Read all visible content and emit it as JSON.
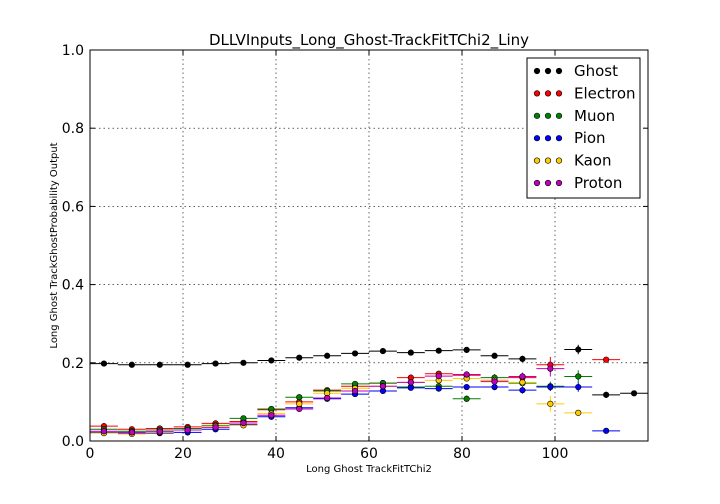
{
  "chart_data": {
    "type": "scatter",
    "title": "DLLVInputs_Long_Ghost-TrackFitTChi2_Liny",
    "xlabel": "Long Ghost TrackFitTChi2",
    "ylabel": "Long Ghost TrackGhostProbability Output",
    "xlim": [
      0,
      120
    ],
    "ylim": [
      0,
      1.0
    ],
    "x_ticks": [
      0,
      20,
      40,
      60,
      80,
      100
    ],
    "x_tick_labels": [
      "0",
      "20",
      "40",
      "60",
      "80",
      "100"
    ],
    "y_ticks": [
      0,
      0.2,
      0.4,
      0.6,
      0.8,
      1.0
    ],
    "y_tick_labels": [
      "0.0",
      "0.2",
      "0.4",
      "0.6",
      "0.8",
      "1.0"
    ],
    "grid": true,
    "legend_position": "top-right",
    "bin_half_width": 3,
    "series": [
      {
        "name": "Ghost",
        "color": "#000000",
        "x": [
          3,
          9,
          15,
          21,
          27,
          33,
          39,
          45,
          51,
          57,
          63,
          69,
          75,
          81,
          87,
          93,
          105,
          111,
          117
        ],
        "y": [
          0.198,
          0.195,
          0.195,
          0.195,
          0.198,
          0.2,
          0.206,
          0.213,
          0.218,
          0.224,
          0.23,
          0.226,
          0.231,
          0.233,
          0.218,
          0.21,
          0.234,
          0.118,
          0.122
        ],
        "yerr": [
          0.003,
          0.003,
          0.003,
          0.003,
          0.003,
          0.003,
          0.004,
          0.004,
          0.004,
          0.005,
          0.005,
          0.006,
          0.006,
          0.006,
          0.007,
          0.008,
          0.012,
          0.008,
          0.006
        ]
      },
      {
        "name": "Electron",
        "color": "#ff0000",
        "x": [
          3,
          9,
          15,
          21,
          27,
          33,
          39,
          45,
          51,
          57,
          63,
          69,
          75,
          81,
          87,
          93,
          99,
          111
        ],
        "y": [
          0.038,
          0.03,
          0.032,
          0.036,
          0.045,
          0.05,
          0.08,
          0.1,
          0.13,
          0.14,
          0.148,
          0.162,
          0.172,
          0.168,
          0.155,
          0.162,
          0.195,
          0.208
        ],
        "yerr": [
          0.003,
          0.003,
          0.003,
          0.003,
          0.003,
          0.004,
          0.004,
          0.005,
          0.005,
          0.006,
          0.006,
          0.007,
          0.007,
          0.008,
          0.009,
          0.01,
          0.02,
          0.004
        ]
      },
      {
        "name": "Muon",
        "color": "#008000",
        "x": [
          3,
          9,
          15,
          21,
          27,
          33,
          39,
          45,
          51,
          57,
          63,
          69,
          75,
          81,
          87,
          93,
          99,
          105
        ],
        "y": [
          0.03,
          0.025,
          0.028,
          0.032,
          0.04,
          0.058,
          0.082,
          0.112,
          0.128,
          0.146,
          0.148,
          0.138,
          0.14,
          0.108,
          0.162,
          0.148,
          0.14,
          0.165
        ],
        "yerr": [
          0.003,
          0.003,
          0.003,
          0.003,
          0.004,
          0.004,
          0.005,
          0.005,
          0.006,
          0.006,
          0.007,
          0.007,
          0.008,
          0.008,
          0.009,
          0.01,
          0.012,
          0.016
        ]
      },
      {
        "name": "Pion",
        "color": "#0000ff",
        "x": [
          3,
          9,
          15,
          21,
          27,
          33,
          39,
          45,
          51,
          57,
          63,
          69,
          75,
          81,
          87,
          93,
          99,
          105,
          111
        ],
        "y": [
          0.022,
          0.02,
          0.02,
          0.022,
          0.03,
          0.042,
          0.062,
          0.085,
          0.108,
          0.12,
          0.128,
          0.136,
          0.134,
          0.138,
          0.138,
          0.13,
          0.138,
          0.138,
          0.026
        ],
        "yerr": [
          0.002,
          0.002,
          0.002,
          0.002,
          0.003,
          0.003,
          0.004,
          0.004,
          0.005,
          0.005,
          0.006,
          0.006,
          0.007,
          0.007,
          0.008,
          0.009,
          0.01,
          0.012,
          0.004
        ]
      },
      {
        "name": "Kaon",
        "color": "#ffcc00",
        "x": [
          3,
          9,
          15,
          21,
          27,
          33,
          39,
          45,
          51,
          57,
          63,
          69,
          75,
          81,
          87,
          93,
          99,
          105
        ],
        "y": [
          0.02,
          0.018,
          0.022,
          0.028,
          0.038,
          0.04,
          0.07,
          0.095,
          0.122,
          0.135,
          0.14,
          0.15,
          0.155,
          0.16,
          0.155,
          0.15,
          0.095,
          0.072
        ],
        "yerr": [
          0.002,
          0.002,
          0.002,
          0.003,
          0.003,
          0.004,
          0.005,
          0.005,
          0.006,
          0.006,
          0.007,
          0.007,
          0.008,
          0.008,
          0.009,
          0.01,
          0.02,
          0.006
        ]
      },
      {
        "name": "Proton",
        "color": "#bf00bf",
        "x": [
          3,
          9,
          15,
          21,
          27,
          33,
          39,
          45,
          51,
          57,
          63,
          69,
          75,
          81,
          87,
          93,
          99
        ],
        "y": [
          0.025,
          0.022,
          0.024,
          0.028,
          0.035,
          0.046,
          0.066,
          0.082,
          0.11,
          0.128,
          0.14,
          0.15,
          0.166,
          0.17,
          0.152,
          0.165,
          0.185
        ],
        "yerr": [
          0.002,
          0.002,
          0.002,
          0.003,
          0.003,
          0.004,
          0.004,
          0.005,
          0.006,
          0.006,
          0.007,
          0.007,
          0.008,
          0.008,
          0.009,
          0.01,
          0.02
        ]
      }
    ]
  }
}
